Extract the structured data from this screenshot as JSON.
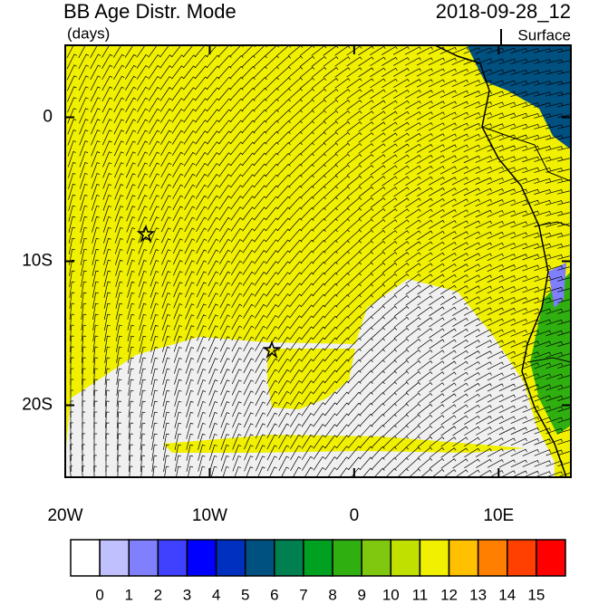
{
  "chart_data": {
    "type": "map",
    "title": "BB Age Distr. Mode",
    "subtitle": "(days)",
    "date": "2018-09-28_12",
    "level": "Surface",
    "xlim": [
      -20,
      15
    ],
    "ylim": [
      -25,
      5
    ],
    "xticks": [
      {
        "value": -20,
        "label": "20W"
      },
      {
        "value": -10,
        "label": "10W"
      },
      0,
      {
        "value": 10,
        "label": "10E"
      }
    ],
    "yticks": [
      0,
      {
        "value": -10,
        "label": "10S"
      },
      {
        "value": -20,
        "label": "20S"
      }
    ],
    "colorbar": {
      "colors": [
        "#ffffff",
        "#c0c0ff",
        "#8080ff",
        "#4040ff",
        "#0000ff",
        "#0030c0",
        "#005080",
        "#008050",
        "#00a020",
        "#30b010",
        "#80c810",
        "#c0e000",
        "#f0f000",
        "#ffc000",
        "#ff8000",
        "#ff4000",
        "#ff0000"
      ],
      "labels": [
        0,
        1,
        2,
        3,
        4,
        5,
        6,
        7,
        8,
        9,
        10,
        11,
        12,
        13,
        14,
        15
      ]
    }
  }
}
